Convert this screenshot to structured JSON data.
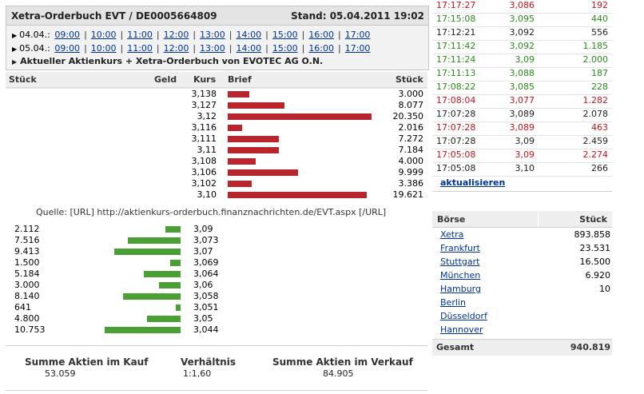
{
  "header": {
    "title": "Xetra-Orderbuch EVT / DE0005664809",
    "stand": "Stand: 05.04.2011 19:02",
    "rows": [
      {
        "date": "04.04.:",
        "times": [
          "09:00",
          "10:00",
          "11:00",
          "12:00",
          "13:00",
          "14:00",
          "15:00",
          "16:00",
          "17:00"
        ]
      },
      {
        "date": "05.04.:",
        "times": [
          "09:00",
          "10:00",
          "11:00",
          "12:00",
          "13:00",
          "14:00",
          "15:00",
          "16:00",
          "17:00"
        ]
      }
    ],
    "info": "Aktueller Aktienkurs + Xetra-Orderbuch von EVOTEC AG O.N."
  },
  "book_header": {
    "stueck_left": "Stück",
    "geld": "Geld",
    "kurs": "Kurs",
    "brief": "Brief",
    "stueck_right": "Stück"
  },
  "asks": [
    {
      "price": "3,138",
      "qty": "3.000",
      "units": 3000
    },
    {
      "price": "3,127",
      "qty": "8.077",
      "units": 8077
    },
    {
      "price": "3,12",
      "qty": "20.350",
      "units": 20350
    },
    {
      "price": "3,116",
      "qty": "2.016",
      "units": 2016
    },
    {
      "price": "3,111",
      "qty": "7.272",
      "units": 7272
    },
    {
      "price": "3,11",
      "qty": "7.184",
      "units": 7184
    },
    {
      "price": "3,108",
      "qty": "4.000",
      "units": 4000
    },
    {
      "price": "3,106",
      "qty": "9.999",
      "units": 9999
    },
    {
      "price": "3,102",
      "qty": "3.386",
      "units": 3386
    },
    {
      "price": "3,10",
      "qty": "19.621",
      "units": 19621
    }
  ],
  "quelle": "Quelle: [URL] http://aktienkurs-orderbuch.finanznachrichten.de/EVT.aspx [/URL]",
  "bids": [
    {
      "qty": "2.112",
      "price": "3,09",
      "units": 2112
    },
    {
      "qty": "7.516",
      "price": "3,073",
      "units": 7516
    },
    {
      "qty": "9.413",
      "price": "3,07",
      "units": 9413
    },
    {
      "qty": "1.500",
      "price": "3,069",
      "units": 1500
    },
    {
      "qty": "5.184",
      "price": "3,064",
      "units": 5184
    },
    {
      "qty": "3.000",
      "price": "3,06",
      "units": 3000
    },
    {
      "qty": "8.140",
      "price": "3,058",
      "units": 8140
    },
    {
      "qty": "641",
      "price": "3,051",
      "units": 641
    },
    {
      "qty": "4.800",
      "price": "3,05",
      "units": 4800
    },
    {
      "qty": "10.753",
      "price": "3,044",
      "units": 10753
    }
  ],
  "summary": {
    "kauf_label": "Summe Aktien im Kauf",
    "kauf_value": "53.059",
    "verhaeltnis_label": "Verhältnis",
    "verhaeltnis_value": "1:1,60",
    "verkauf_label": "Summe Aktien im Verkauf",
    "verkauf_value": "84.905"
  },
  "trades": [
    {
      "time": "17:17:27",
      "price": "3,086",
      "volume": "192",
      "dir": "down"
    },
    {
      "time": "17:15:08",
      "price": "3,095",
      "volume": "440",
      "dir": "up"
    },
    {
      "time": "17:12:21",
      "price": "3,092",
      "volume": "556",
      "dir": "none"
    },
    {
      "time": "17:11:42",
      "price": "3,092",
      "volume": "1.185",
      "dir": "up"
    },
    {
      "time": "17:11:24",
      "price": "3,09",
      "volume": "2.000",
      "dir": "up"
    },
    {
      "time": "17:11:13",
      "price": "3,088",
      "volume": "187",
      "dir": "up"
    },
    {
      "time": "17:08:22",
      "price": "3,085",
      "volume": "228",
      "dir": "up"
    },
    {
      "time": "17:08:04",
      "price": "3,077",
      "volume": "1.282",
      "dir": "down"
    },
    {
      "time": "17:07:28",
      "price": "3,089",
      "volume": "2.078",
      "dir": "none"
    },
    {
      "time": "17:07:28",
      "price": "3,089",
      "volume": "463",
      "dir": "down"
    },
    {
      "time": "17:07:28",
      "price": "3,09",
      "volume": "2.459",
      "dir": "none"
    },
    {
      "time": "17:05:08",
      "price": "3,09",
      "volume": "2.274",
      "dir": "down"
    },
    {
      "time": "17:05:08",
      "price": "3,10",
      "volume": "266",
      "dir": "none"
    }
  ],
  "refresh": "aktualisieren",
  "exchanges_header": {
    "boerse": "Börse",
    "stueck": "Stück"
  },
  "exchanges": [
    {
      "name": "Xetra",
      "value": "893.858"
    },
    {
      "name": "Frankfurt",
      "value": "23.531"
    },
    {
      "name": "Stuttgart",
      "value": "16.500"
    },
    {
      "name": "München",
      "value": "6.920"
    },
    {
      "name": "Hamburg",
      "value": "10"
    },
    {
      "name": "Berlin",
      "value": ""
    },
    {
      "name": "Düsseldorf",
      "value": ""
    },
    {
      "name": "Hannover",
      "value": ""
    }
  ],
  "gesamt": {
    "label": "Gesamt",
    "value": "940.819"
  },
  "colors": {
    "ask_bar": "#b8252c",
    "bid_bar": "#4aa033",
    "up": "#2a8a1a",
    "down": "#c0141c",
    "link": "#003399"
  }
}
